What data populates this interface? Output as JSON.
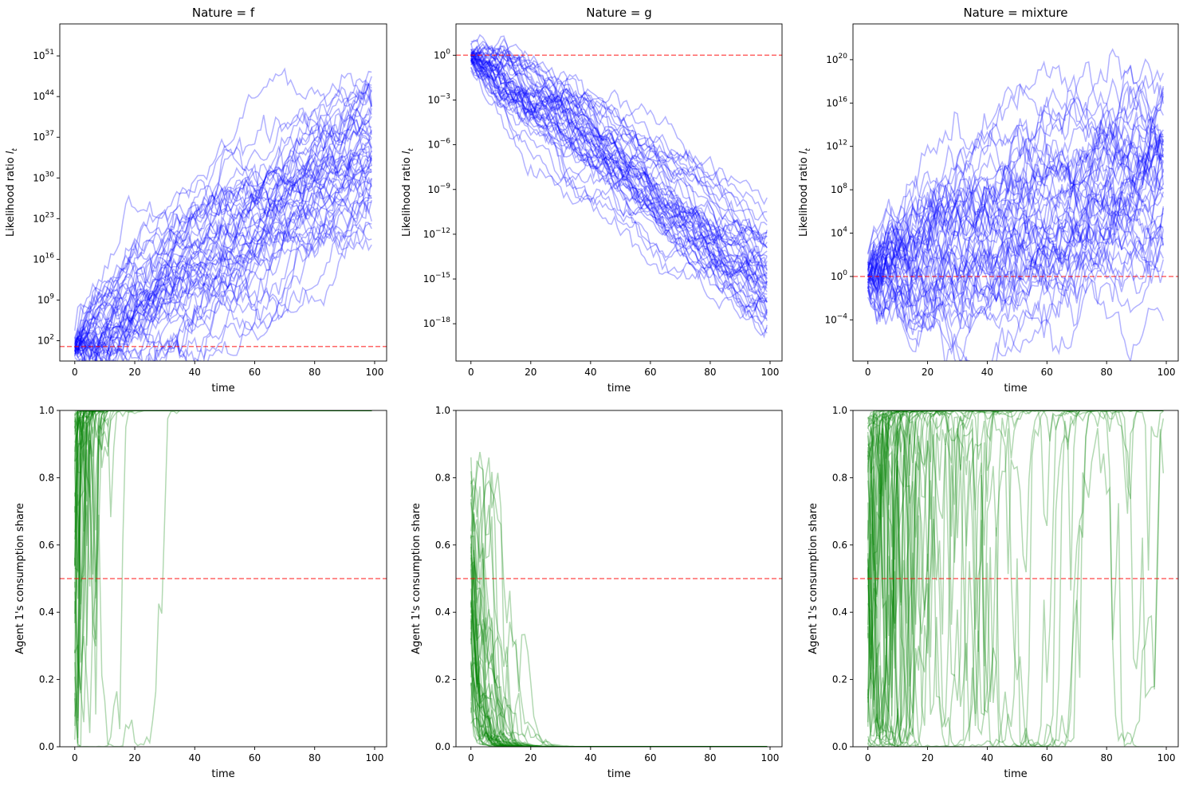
{
  "colors": {
    "likelihood_line": "#0000ff",
    "share_line": "#008000",
    "reference_line": "#ff0000"
  },
  "chart_data": [
    {
      "type": "line",
      "panel": "top-left",
      "title": "Nature = f",
      "xlabel": "time",
      "ylabel_main": "Likelihood ratio ",
      "ylabel_math": "l",
      "ylabel_sub": "t",
      "yscale": "log",
      "xlim": [
        -5,
        104
      ],
      "ylim_log10": [
        -1.5,
        56.5
      ],
      "xticks": [
        "0",
        "20",
        "40",
        "60",
        "80",
        "100"
      ],
      "ytick_base": "10",
      "yticks_exp": [
        "2",
        "9",
        "16",
        "23",
        "30",
        "37",
        "44",
        "51"
      ],
      "reference_log10": 1,
      "n_paths": 50,
      "start_log10": 1.2,
      "median_end_log10": 33,
      "spread_end_log10": 18,
      "max_end_log10": 52,
      "min_end_log10": 17,
      "path_noise": 1.3
    },
    {
      "type": "line",
      "panel": "top-middle",
      "title": "Nature = g",
      "xlabel": "time",
      "ylabel_main": "Likelihood ratio ",
      "ylabel_math": "l",
      "ylabel_sub": "t",
      "yscale": "log",
      "xlim": [
        -5,
        104
      ],
      "ylim_log10": [
        -20.5,
        2.1
      ],
      "xticks": [
        "0",
        "20",
        "40",
        "60",
        "80",
        "100"
      ],
      "ytick_base": "10",
      "yticks_exp": [
        "0",
        "−3",
        "−6",
        "−9",
        "−12",
        "−15",
        "−18"
      ],
      "reference_log10": 0,
      "n_paths": 50,
      "start_log10": 0,
      "median_end_log10": -15,
      "spread_end_log10": 5,
      "max_end_log10": -3.5,
      "min_end_log10": -19.5,
      "path_noise": 0.35
    },
    {
      "type": "line",
      "panel": "top-right",
      "title": "Nature = mixture",
      "xlabel": "time",
      "ylabel_main": "Likelihood ratio ",
      "ylabel_math": "l",
      "ylabel_sub": "t",
      "yscale": "log",
      "xlim": [
        -5,
        104
      ],
      "ylim_log10": [
        -7.8,
        23.3
      ],
      "xticks": [
        "0",
        "20",
        "40",
        "60",
        "80",
        "100"
      ],
      "ytick_base": "10",
      "yticks_exp": [
        "−4",
        "0",
        "4",
        "8",
        "12",
        "16",
        "20"
      ],
      "reference_log10": 0,
      "n_paths": 50,
      "start_log10": 0,
      "median_end_log10": 9,
      "spread_end_log10": 11,
      "max_end_log10": 22.5,
      "min_end_log10": -4.5,
      "path_noise": 1.0
    },
    {
      "type": "line",
      "panel": "bottom-left",
      "xlabel": "time",
      "ylabel": "Agent 1's consumption share",
      "xlim": [
        -5,
        104
      ],
      "ylim": [
        0,
        1
      ],
      "xticks": [
        "0",
        "20",
        "40",
        "60",
        "80",
        "100"
      ],
      "yticks": [
        "0.0",
        "0.2",
        "0.4",
        "0.6",
        "0.8",
        "1.0"
      ],
      "reference_value": 0.5,
      "n_paths": 50,
      "drift": 0.33,
      "sigma": 1.3,
      "start_log10": 0
    },
    {
      "type": "line",
      "panel": "bottom-middle",
      "xlabel": "time",
      "ylabel": "Agent 1's consumption share",
      "xlim": [
        -5,
        104
      ],
      "ylim": [
        0,
        1
      ],
      "xticks": [
        "0",
        "20",
        "40",
        "60",
        "80",
        "100"
      ],
      "yticks": [
        "0.0",
        "0.2",
        "0.4",
        "0.6",
        "0.8",
        "1.0"
      ],
      "reference_value": 0.5,
      "n_paths": 50,
      "drift": -0.15,
      "sigma": 0.35,
      "start_log10": 0
    },
    {
      "type": "line",
      "panel": "bottom-right",
      "xlabel": "time",
      "ylabel": "Agent 1's consumption share",
      "xlim": [
        -5,
        104
      ],
      "ylim": [
        0,
        1
      ],
      "xticks": [
        "0",
        "20",
        "40",
        "60",
        "80",
        "100"
      ],
      "yticks": [
        "0.0",
        "0.2",
        "0.4",
        "0.6",
        "0.8",
        "1.0"
      ],
      "reference_value": 0.5,
      "n_paths": 50,
      "drift": 0.09,
      "sigma": 1.0,
      "start_log10": 0
    }
  ]
}
